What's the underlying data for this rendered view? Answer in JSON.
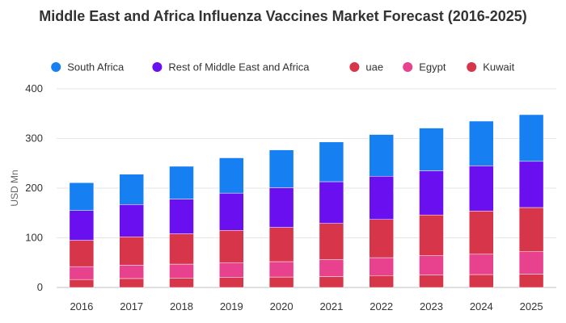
{
  "chart_data": {
    "type": "bar",
    "stacked": true,
    "title": "Middle East and Africa Influenza Vaccines Market Forecast (2016-2025)",
    "xlabel": "",
    "ylabel": "USD Mn",
    "ylim": [
      0,
      400
    ],
    "yticks": [
      0,
      100,
      200,
      300,
      400
    ],
    "grid": true,
    "legend_position": "top",
    "categories": [
      "2016",
      "2017",
      "2018",
      "2019",
      "2020",
      "2021",
      "2022",
      "2023",
      "2024",
      "2025"
    ],
    "series": [
      {
        "name": "Kuwait",
        "color": "#d7364a",
        "values": [
          16,
          18,
          19,
          20,
          21,
          22,
          24,
          25,
          26,
          27
        ]
      },
      {
        "name": "Egypt",
        "color": "#e8418e",
        "values": [
          26,
          27,
          28,
          30,
          31,
          34,
          36,
          39,
          41,
          45
        ]
      },
      {
        "name": "uae",
        "color": "#d7364a",
        "values": [
          53,
          57,
          61,
          65,
          69,
          73,
          77,
          82,
          87,
          89
        ]
      },
      {
        "name": "Rest of Middle East and Africa",
        "color": "#6a10f0",
        "values": [
          60,
          65,
          70,
          75,
          80,
          84,
          87,
          89,
          91,
          93
        ]
      },
      {
        "name": "South Africa",
        "color": "#1680f2",
        "values": [
          56,
          61,
          66,
          71,
          76,
          80,
          84,
          86,
          90,
          94
        ]
      }
    ],
    "legend_order": [
      "South Africa",
      "Rest of Middle East and Africa",
      "uae",
      "Egypt",
      "Kuwait"
    ]
  }
}
